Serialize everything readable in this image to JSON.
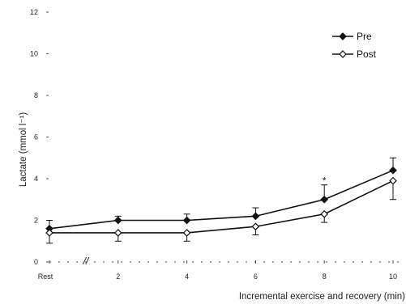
{
  "chart_data": {
    "type": "line",
    "xlabel": "Incremental exercise and recovery (min)",
    "ylabel": "Lactate (mmol l⁻¹)",
    "ylim": [
      0,
      12
    ],
    "xlim": [
      0,
      10
    ],
    "y_ticks": [
      0,
      2,
      4,
      6,
      8,
      10,
      12
    ],
    "x_tick_positions": [
      0,
      2,
      4,
      6,
      8,
      10
    ],
    "x_tick_labels": [
      "Rest",
      "2",
      "4",
      "6",
      "8",
      "10"
    ],
    "axis_break_mark": "//",
    "grid": false,
    "legend_position": "top-right",
    "series": [
      {
        "name": "Pre",
        "marker": "filled-diamond",
        "x": [
          0,
          2,
          4,
          6,
          8,
          10
        ],
        "y": [
          1.6,
          2.0,
          2.0,
          2.2,
          3.0,
          4.4
        ],
        "error": [
          0.4,
          0.2,
          0.3,
          0.4,
          0.7,
          0.6
        ]
      },
      {
        "name": "Post",
        "marker": "open-diamond",
        "x": [
          0,
          2,
          4,
          6,
          8,
          10
        ],
        "y": [
          1.4,
          1.4,
          1.4,
          1.7,
          2.3,
          3.9
        ],
        "error": [
          0.5,
          0.4,
          0.4,
          0.4,
          0.4,
          0.9
        ]
      }
    ],
    "annotations": [
      {
        "text": "*",
        "x": 8,
        "y": 3.9
      }
    ]
  }
}
